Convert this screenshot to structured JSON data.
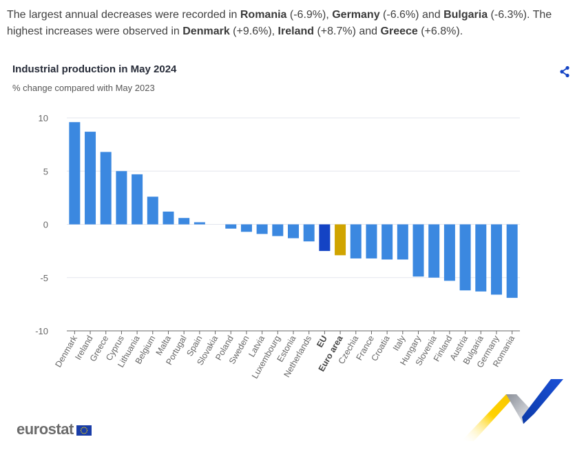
{
  "intro": {
    "parts": [
      {
        "t": "The largest annual decreases were recorded in ",
        "b": false
      },
      {
        "t": "Romania",
        "b": true
      },
      {
        "t": " (-6.9%), ",
        "b": false
      },
      {
        "t": "Germany",
        "b": true
      },
      {
        "t": " (-6.6%) and ",
        "b": false
      },
      {
        "t": "Bulgaria",
        "b": true
      },
      {
        "t": " (-6.3%). The highest increases were observed in ",
        "b": false
      },
      {
        "t": "Denmark",
        "b": true
      },
      {
        "t": " (+9.6%), ",
        "b": false
      },
      {
        "t": "Ireland",
        "b": true
      },
      {
        "t": " (+8.7%) and ",
        "b": false
      },
      {
        "t": "Greece",
        "b": true
      },
      {
        "t": " (+6.8%).",
        "b": false
      }
    ]
  },
  "logo": {
    "text": "eurostat"
  },
  "icons": {
    "share": "share-icon"
  },
  "colors": {
    "bar": "#3b88e0",
    "eu": "#1443c4",
    "euro_area": "#d0a400",
    "grid": "#e3e6ee",
    "axis": "#666666",
    "tick_text": "#666666"
  },
  "chart_data": {
    "type": "bar",
    "title": "Industrial production in May 2024",
    "subtitle": "% change compared with May 2023",
    "xlabel": "",
    "ylabel": "",
    "ylim": [
      -10,
      10
    ],
    "yticks": [
      10,
      5,
      0,
      -5,
      -10
    ],
    "grid": true,
    "legend": "none",
    "categories": [
      "Denmark",
      "Ireland",
      "Greece",
      "Cyprus",
      "Lithuania",
      "Belgium",
      "Malta",
      "Portugal",
      "Spain",
      "Slovakia",
      "Poland",
      "Sweden",
      "Latvia",
      "Luxembourg",
      "Estonia",
      "Netherlands",
      "EU",
      "Euro area",
      "Czechia",
      "France",
      "Croatia",
      "Italy",
      "Hungary",
      "Slovenia",
      "Finland",
      "Austria",
      "Bulgaria",
      "Germany",
      "Romania"
    ],
    "values": [
      9.6,
      8.7,
      6.8,
      5.0,
      4.7,
      2.6,
      1.2,
      0.6,
      0.2,
      0.0,
      -0.4,
      -0.7,
      -0.9,
      -1.1,
      -1.3,
      -1.6,
      -2.5,
      -2.9,
      -3.2,
      -3.2,
      -3.3,
      -3.3,
      -4.9,
      -5.0,
      -5.3,
      -6.2,
      -6.3,
      -6.6,
      -6.9
    ],
    "highlight": {
      "EU": "eu",
      "Euro area": "euro_area"
    }
  }
}
